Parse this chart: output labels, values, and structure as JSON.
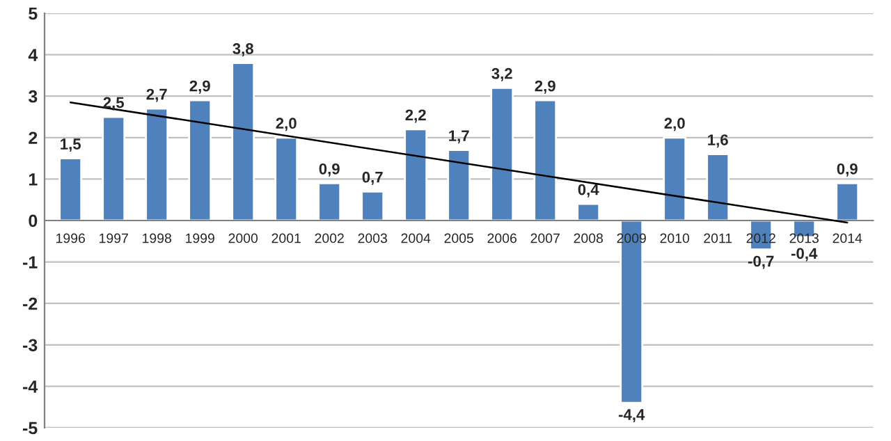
{
  "chart_data": {
    "type": "bar",
    "categories": [
      "1996",
      "1997",
      "1998",
      "1999",
      "2000",
      "2001",
      "2002",
      "2003",
      "2004",
      "2005",
      "2006",
      "2007",
      "2008",
      "2009",
      "2010",
      "2011",
      "2012",
      "2013",
      "2014"
    ],
    "series": [
      {
        "color": "#4f81bd",
        "values": [
          1.5,
          2.5,
          2.7,
          2.9,
          3.8,
          2.0,
          0.9,
          0.7,
          2.2,
          1.7,
          3.2,
          2.9,
          0.4,
          -4.4,
          2.0,
          1.6,
          -0.7,
          -0.4,
          0.9
        ],
        "value_labels": [
          "1,5",
          "2,5",
          "2,7",
          "2,9",
          "3,8",
          "2,0",
          "0,9",
          "0,7",
          "2,2",
          "1,7",
          "3,2",
          "2,9",
          "0,4",
          "-4,4",
          "2,0",
          "1,6",
          "-0,7",
          "-0,4",
          "0,9"
        ]
      },
      {
        "type": "line",
        "color": "#000000",
        "values": [
          2.85,
          null,
          null,
          null,
          null,
          null,
          null,
          null,
          null,
          null,
          null,
          null,
          null,
          null,
          null,
          null,
          null,
          null,
          -0.05
        ]
      }
    ],
    "ylim": [
      -5,
      5
    ],
    "yticks": [
      -5,
      -4,
      -3,
      -2,
      -1,
      0,
      1,
      2,
      3,
      4,
      5
    ],
    "grid": "y",
    "legend": false
  }
}
